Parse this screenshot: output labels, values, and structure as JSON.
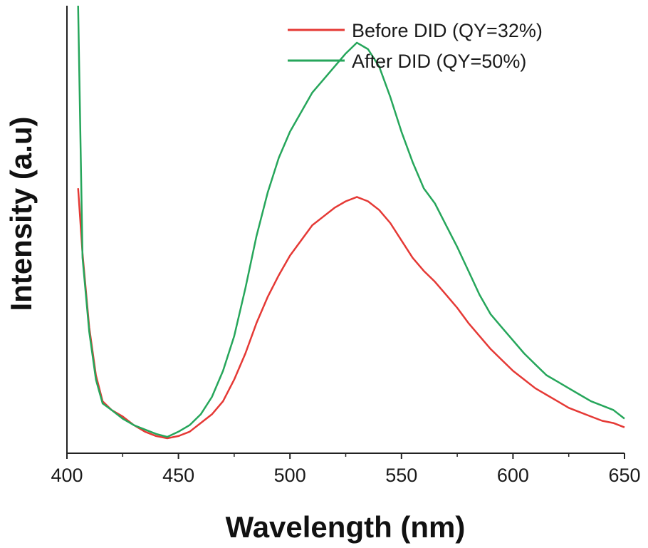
{
  "chart_data": {
    "type": "line",
    "xlabel": "Wavelength (nm)",
    "ylabel": "Intensity (a.u)",
    "xlim": [
      400,
      650
    ],
    "ylim": [
      0,
      100
    ],
    "x_ticks": [
      400,
      450,
      500,
      550,
      600,
      650
    ],
    "y_ticks_shown": false,
    "legend_position": "top-right",
    "grid": false,
    "series": [
      {
        "name": "Before DID (QY=32%)",
        "color": "#e53935",
        "x": [
          405,
          407,
          410,
          413,
          416,
          420,
          425,
          430,
          435,
          440,
          445,
          450,
          455,
          460,
          465,
          470,
          475,
          480,
          485,
          490,
          495,
          500,
          505,
          510,
          515,
          520,
          525,
          530,
          535,
          540,
          545,
          550,
          555,
          560,
          565,
          570,
          575,
          580,
          585,
          590,
          595,
          600,
          605,
          610,
          615,
          620,
          625,
          630,
          635,
          640,
          645,
          650
        ],
        "y": [
          58,
          43,
          26,
          15,
          9,
          7,
          5.5,
          3.5,
          2,
          1,
          0.5,
          1,
          2,
          4,
          6,
          9,
          14,
          20,
          27,
          33,
          38,
          42.5,
          46,
          49.5,
          51.5,
          53.5,
          55,
          56,
          55,
          53,
          50,
          46,
          42,
          39,
          36.5,
          33.5,
          30.5,
          27,
          24,
          21,
          18.5,
          16,
          14,
          12,
          10.5,
          9,
          7.5,
          6.5,
          5.5,
          4.5,
          4,
          3
        ]
      },
      {
        "name": "After DID (QY=50%)",
        "color": "#26a65b",
        "x": [
          405,
          407,
          410,
          413,
          416,
          420,
          425,
          430,
          435,
          440,
          445,
          450,
          455,
          460,
          465,
          470,
          475,
          480,
          485,
          490,
          495,
          500,
          505,
          510,
          515,
          520,
          525,
          530,
          535,
          540,
          545,
          550,
          555,
          560,
          565,
          570,
          575,
          580,
          585,
          590,
          595,
          600,
          605,
          610,
          615,
          620,
          625,
          630,
          635,
          640,
          645,
          650
        ],
        "y": [
          100,
          42,
          25,
          14,
          8.5,
          7,
          5,
          3.5,
          2.5,
          1.5,
          0.8,
          2,
          3.5,
          6,
          10,
          16,
          24,
          35,
          47,
          57,
          65,
          71,
          75.5,
          80,
          83,
          86,
          89,
          91.5,
          90,
          86,
          79,
          71,
          64,
          58,
          54.5,
          49.5,
          44.5,
          39,
          33.5,
          29,
          26,
          23,
          20,
          17.5,
          15,
          13.5,
          12,
          10.5,
          9,
          8,
          7,
          5
        ]
      }
    ]
  }
}
